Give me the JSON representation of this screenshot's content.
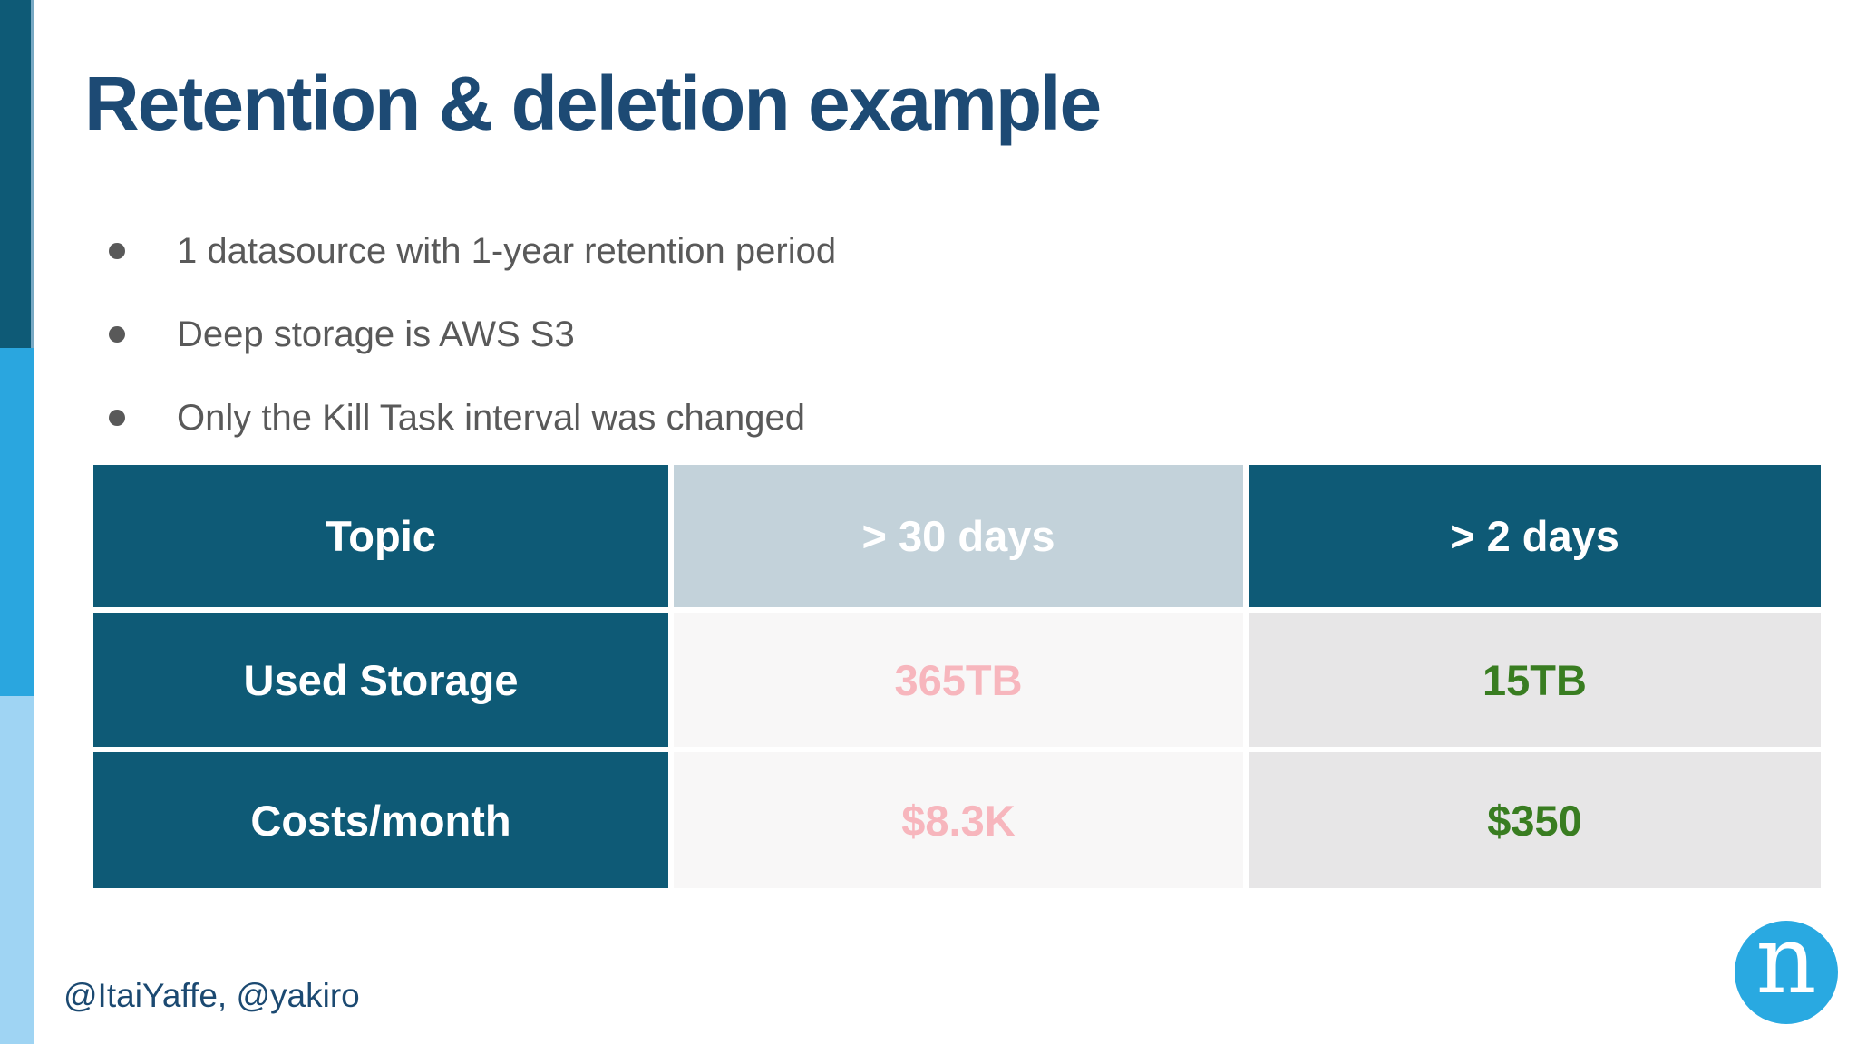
{
  "slide": {
    "title": "Retention & deletion example",
    "bullets": [
      "1 datasource with 1-year retention period",
      "Deep storage is AWS S3",
      "Only the Kill Task interval was changed"
    ],
    "footer": "@ItaiYaffe, @yakiro",
    "logo_letter": "n"
  },
  "table": {
    "header": [
      "Topic",
      "> 30 days",
      "> 2 days"
    ],
    "rows": [
      {
        "label": "Used Storage",
        "gt30days": "365TB",
        "gt2days": "15TB"
      },
      {
        "label": "Costs/month",
        "gt30days": "$8.3K",
        "gt2days": "$350"
      }
    ]
  },
  "colors": {
    "title_navy": "#1d4a74",
    "bullet_gray": "#595959",
    "table_teal": "#0e5a76",
    "header_col2_bg": "#c3d2da",
    "col2_cell_bg": "#f8f7f7",
    "col3_cell_bg": "#e7e6e7",
    "value_bad_pink": "#f7b6bd",
    "value_good_green": "#397d21",
    "bar_dark": "#0e5a76",
    "bar_mid": "#2aa6df",
    "bar_light": "#9fd4f3",
    "logo_blue": "#29a9e1",
    "footer_navy": "#1b4971"
  }
}
